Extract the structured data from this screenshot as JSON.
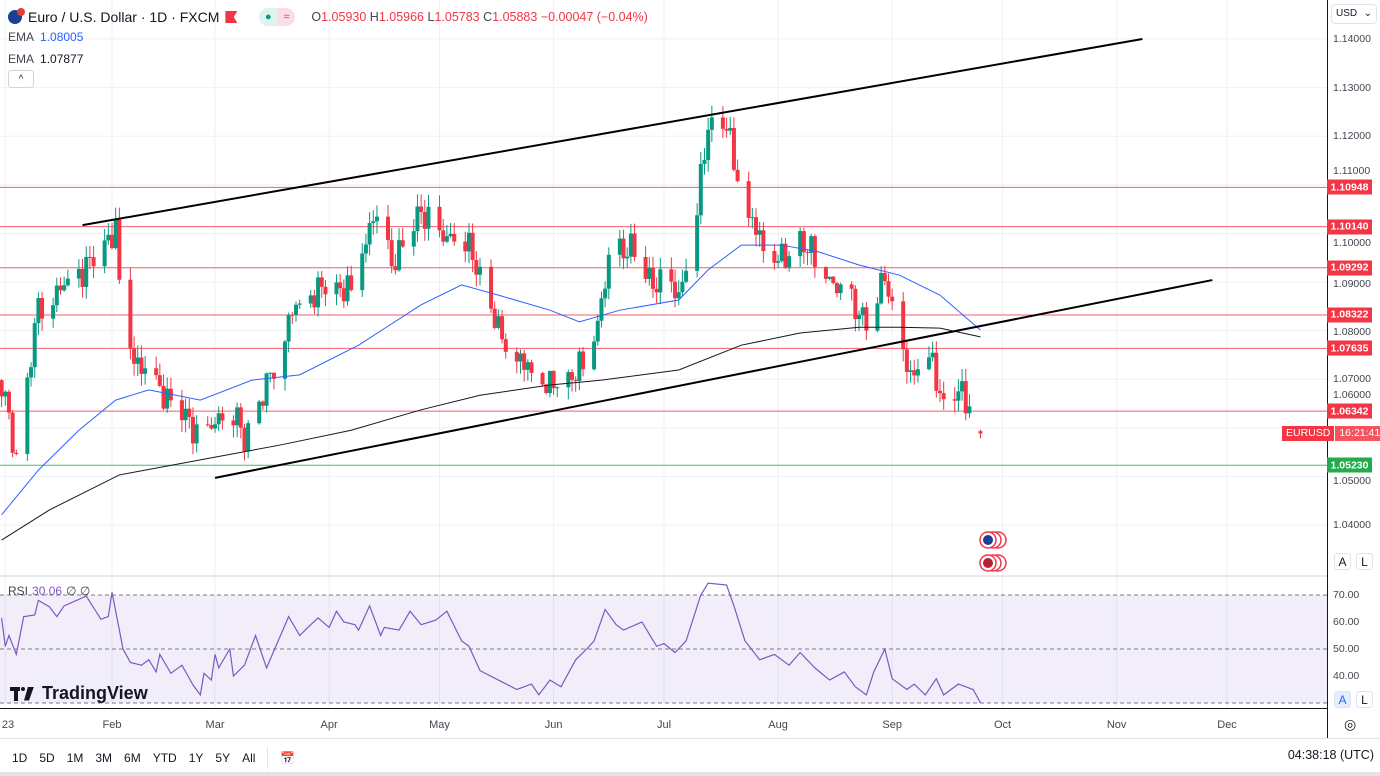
{
  "header": {
    "symbol": "Euro / U.S. Dollar · 1D · FXCM",
    "open_label": "O",
    "open": "1.05930",
    "high_label": "H",
    "high": "1.05966",
    "low_label": "L",
    "low": "1.05783",
    "close_label": "C",
    "close": "1.05883",
    "change": "−0.00047 (−0.04%)",
    "market_status_icon": "dot",
    "wave_icon": "≈"
  },
  "indicators": [
    {
      "name": "EMA",
      "value": "1.08005",
      "color": "#2962ff"
    },
    {
      "name": "EMA",
      "value": "1.07877",
      "color": "#131722"
    }
  ],
  "collapse_icon": "^",
  "price_axis": {
    "currency": "USD",
    "ticks": [
      "1.14000",
      "1.13000",
      "1.12000",
      "1.11000",
      "1.10000",
      "1.09000",
      "1.08000",
      "1.07000",
      "1.06000",
      "1.05000",
      "1.04000"
    ],
    "auto_label": "A",
    "log_label": "L"
  },
  "levels": [
    {
      "value": "1.10948",
      "color": "#f23645"
    },
    {
      "value": "1.10140",
      "color": "#f23645"
    },
    {
      "value": "1.09292",
      "color": "#f23645"
    },
    {
      "value": "1.08322",
      "color": "#f23645"
    },
    {
      "value": "1.07635",
      "color": "#f23645"
    },
    {
      "value": "1.06342",
      "color": "#f23645"
    },
    {
      "value": "1.05230",
      "color": "#22ab4a"
    }
  ],
  "last_price_label": {
    "symbol": "EURUSD",
    "countdown": "16:21:41"
  },
  "rsi": {
    "label": "RSI",
    "value": "30.06",
    "extra1": "∅",
    "extra2": "∅",
    "ticks": [
      "70.00",
      "60.00",
      "50.00",
      "40.00"
    ]
  },
  "watermark": "TradingView",
  "time_axis": {
    "labels": [
      {
        "text": "23",
        "doy": 3
      },
      {
        "text": "Feb",
        "doy": 32
      },
      {
        "text": "Mar",
        "doy": 60
      },
      {
        "text": "Apr",
        "doy": 91
      },
      {
        "text": "May",
        "doy": 121
      },
      {
        "text": "Jun",
        "doy": 152
      },
      {
        "text": "Jul",
        "doy": 182
      },
      {
        "text": "Aug",
        "doy": 213
      },
      {
        "text": "Sep",
        "doy": 244
      },
      {
        "text": "Oct",
        "doy": 274
      },
      {
        "text": "Nov",
        "doy": 305
      },
      {
        "text": "Dec",
        "doy": 335
      }
    ]
  },
  "ranges": [
    "1D",
    "5D",
    "1M",
    "3M",
    "6M",
    "YTD",
    "1Y",
    "5Y",
    "All"
  ],
  "clock": "04:38:18 (UTC)",
  "chart_data": {
    "type": "candlestick",
    "year": 2023,
    "price_range": [
      1.035,
      1.145
    ],
    "up_color": "#089981",
    "down_color": "#f23645",
    "close_path": [
      [
        2,
        1.0698
      ],
      [
        6,
        1.0534
      ],
      [
        12,
        1.0853
      ],
      [
        23,
        1.0914
      ],
      [
        33,
        1.1007
      ],
      [
        35,
        1.078
      ],
      [
        42,
        1.07
      ],
      [
        53,
        1.0616
      ],
      [
        56,
        1.0565
      ],
      [
        64,
        1.0657
      ],
      [
        68,
        1.0575
      ],
      [
        73,
        1.0667
      ],
      [
        81,
        1.084
      ],
      [
        89,
        1.089
      ],
      [
        97,
        1.0884
      ],
      [
        103,
        1.1038
      ],
      [
        108,
        1.0935
      ],
      [
        116,
        1.1048
      ],
      [
        121,
        1.0986
      ],
      [
        127,
        1.1007
      ],
      [
        132,
        1.0914
      ],
      [
        137,
        1.0801
      ],
      [
        144,
        1.0729
      ],
      [
        151,
        1.0688
      ],
      [
        156,
        1.0698
      ],
      [
        162,
        1.075
      ],
      [
        167,
        1.0935
      ],
      [
        173,
        1.0976
      ],
      [
        178,
        1.0904
      ],
      [
        186,
        1.0873
      ],
      [
        190,
        1.0997
      ],
      [
        194,
        1.1223
      ],
      [
        199,
        1.1223
      ],
      [
        201,
        1.115
      ],
      [
        205,
        1.1038
      ],
      [
        209,
        1.0976
      ],
      [
        215,
        1.0945
      ],
      [
        219,
        1.0986
      ],
      [
        224,
        1.0945
      ],
      [
        230,
        1.0873
      ],
      [
        235,
        1.084
      ],
      [
        238,
        1.08
      ],
      [
        242,
        1.0925
      ],
      [
        245,
        1.078
      ],
      [
        249,
        1.0709
      ],
      [
        254,
        1.075
      ],
      [
        258,
        1.0647
      ],
      [
        262,
        1.0678
      ],
      [
        266,
        1.0637
      ],
      [
        268,
        1.05883
      ]
    ],
    "last_candle": {
      "open": 1.0593,
      "high": 1.05966,
      "low": 1.05783,
      "close": 1.05883
    },
    "ema_fast": [
      [
        2,
        1.0421
      ],
      [
        12,
        1.0513
      ],
      [
        23,
        1.0595
      ],
      [
        33,
        1.0657
      ],
      [
        42,
        1.0678
      ],
      [
        56,
        1.0657
      ],
      [
        70,
        1.0698
      ],
      [
        83,
        1.0709
      ],
      [
        99,
        1.077
      ],
      [
        116,
        1.0853
      ],
      [
        127,
        1.0894
      ],
      [
        137,
        1.0873
      ],
      [
        151,
        1.0842
      ],
      [
        159,
        1.0818
      ],
      [
        170,
        1.0842
      ],
      [
        186,
        1.0863
      ],
      [
        194,
        1.0925
      ],
      [
        203,
        1.0976
      ],
      [
        214,
        1.0976
      ],
      [
        224,
        1.0962
      ],
      [
        235,
        1.0935
      ],
      [
        246,
        1.0914
      ],
      [
        257,
        1.0873
      ],
      [
        268,
        1.0801
      ]
    ],
    "ema_slow": [
      [
        2,
        1.0369
      ],
      [
        15,
        1.0431
      ],
      [
        34,
        1.0503
      ],
      [
        56,
        1.0534
      ],
      [
        78,
        1.0565
      ],
      [
        97,
        1.0595
      ],
      [
        116,
        1.0637
      ],
      [
        132,
        1.0667
      ],
      [
        151,
        1.0688
      ],
      [
        165,
        1.0698
      ],
      [
        186,
        1.0719
      ],
      [
        203,
        1.077
      ],
      [
        219,
        1.0795
      ],
      [
        235,
        1.0807
      ],
      [
        246,
        1.0807
      ],
      [
        257,
        1.0805
      ],
      [
        268,
        1.0787
      ]
    ],
    "trendlines": [
      [
        [
          24,
          1.1017
        ],
        [
          312,
          1.14
        ]
      ],
      [
        [
          60,
          1.0497
        ],
        [
          331,
          1.0904
        ]
      ]
    ],
    "rsi": [
      [
        2,
        61.5
      ],
      [
        3,
        51
      ],
      [
        4,
        55
      ],
      [
        6,
        48
      ],
      [
        8,
        62
      ],
      [
        11,
        62.6
      ],
      [
        12,
        68
      ],
      [
        15,
        65.6
      ],
      [
        17,
        62
      ],
      [
        19,
        66
      ],
      [
        25,
        69.6
      ],
      [
        29,
        61
      ],
      [
        31,
        62
      ],
      [
        32,
        71
      ],
      [
        35,
        50
      ],
      [
        37,
        45
      ],
      [
        40,
        44
      ],
      [
        42,
        46
      ],
      [
        44,
        41.5
      ],
      [
        45,
        48
      ],
      [
        48,
        41
      ],
      [
        51,
        44
      ],
      [
        54,
        36.7
      ],
      [
        56,
        33
      ],
      [
        57,
        41
      ],
      [
        59,
        38.5
      ],
      [
        60,
        48
      ],
      [
        61,
        43
      ],
      [
        64,
        50
      ],
      [
        65,
        40
      ],
      [
        68,
        44
      ],
      [
        71,
        55
      ],
      [
        74,
        43
      ],
      [
        80,
        62
      ],
      [
        83,
        55
      ],
      [
        86,
        59
      ],
      [
        88,
        61.5
      ],
      [
        91,
        58
      ],
      [
        93,
        64
      ],
      [
        95,
        60
      ],
      [
        98,
        59
      ],
      [
        99,
        57
      ],
      [
        102,
        66
      ],
      [
        105,
        55
      ],
      [
        106,
        58
      ],
      [
        110,
        57
      ],
      [
        113,
        64
      ],
      [
        116,
        59
      ],
      [
        120,
        60.7
      ],
      [
        123,
        64
      ],
      [
        127,
        53
      ],
      [
        129,
        51
      ],
      [
        132,
        42
      ],
      [
        137,
        38.5
      ],
      [
        142,
        35
      ],
      [
        146,
        37
      ],
      [
        148,
        33
      ],
      [
        151,
        38.5
      ],
      [
        154,
        36
      ],
      [
        158,
        46
      ],
      [
        161,
        50
      ],
      [
        163,
        53
      ],
      [
        166,
        64.6
      ],
      [
        169,
        59
      ],
      [
        171,
        57
      ],
      [
        176,
        60
      ],
      [
        180,
        51
      ],
      [
        182,
        52
      ],
      [
        185,
        48.7
      ],
      [
        188,
        53
      ],
      [
        192,
        70
      ],
      [
        194,
        74.4
      ],
      [
        199,
        73.7
      ],
      [
        201,
        66
      ],
      [
        204,
        53
      ],
      [
        208,
        46
      ],
      [
        212,
        48
      ],
      [
        216,
        44
      ],
      [
        219,
        48.7
      ],
      [
        223,
        43
      ],
      [
        227,
        38.5
      ],
      [
        231,
        41.5
      ],
      [
        234,
        36
      ],
      [
        237,
        33
      ],
      [
        239,
        41.5
      ],
      [
        242,
        50
      ],
      [
        244,
        39
      ],
      [
        248,
        35
      ],
      [
        250,
        37
      ],
      [
        253,
        33
      ],
      [
        256,
        39
      ],
      [
        258,
        33
      ],
      [
        262,
        37
      ],
      [
        266,
        35
      ],
      [
        268,
        30.06
      ]
    ]
  }
}
